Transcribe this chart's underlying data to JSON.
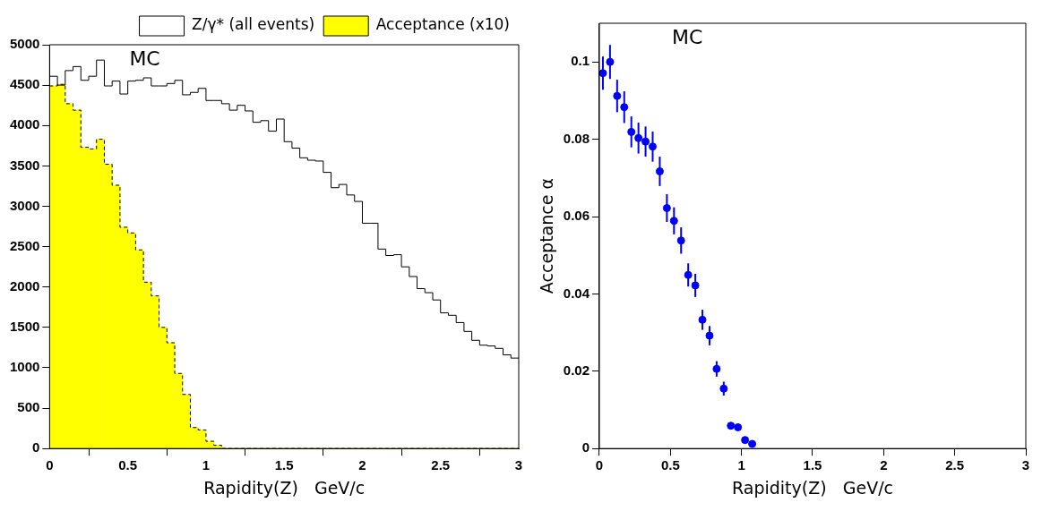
{
  "chart_data": [
    {
      "type": "histogram",
      "xlabel": "Rapidity(Z)   GeV/c",
      "annotations": [
        "MC"
      ],
      "legend": "top right",
      "bins": [
        0,
        0.05,
        0.1,
        0.15,
        0.2,
        0.25,
        0.3,
        0.35,
        0.4,
        0.45,
        0.5,
        0.55,
        0.6,
        0.65,
        0.7,
        0.75,
        0.8,
        0.85,
        0.9,
        0.95,
        1,
        1.05,
        1.1,
        1.15,
        1.2,
        1.25,
        1.3,
        1.35,
        1.4,
        1.45,
        1.5,
        1.55,
        1.6,
        1.65,
        1.7,
        1.75,
        1.8,
        1.85,
        1.9,
        1.95,
        2,
        2.05,
        2.1,
        2.15,
        2.2,
        2.25,
        2.3,
        2.35,
        2.4,
        2.45,
        2.5,
        2.55,
        2.6,
        2.65,
        2.7,
        2.75,
        2.8,
        2.85,
        2.9,
        2.95,
        3
      ],
      "series": [
        {
          "name": "Z/γ* (all events)",
          "color": "#000000",
          "line_style": "solid",
          "values": [
            4610,
            4500,
            4680,
            4730,
            4560,
            4610,
            4810,
            4490,
            4550,
            4390,
            4550,
            4560,
            4590,
            4490,
            4490,
            4520,
            4560,
            4380,
            4410,
            4460,
            4310,
            4310,
            4270,
            4190,
            4250,
            4180,
            4040,
            4060,
            3930,
            4080,
            3800,
            3720,
            3600,
            3570,
            3560,
            3420,
            3230,
            3270,
            3140,
            3060,
            2790,
            2790,
            2470,
            2390,
            2400,
            2250,
            2130,
            1980,
            1930,
            1840,
            1680,
            1650,
            1560,
            1450,
            1340,
            1280,
            1270,
            1240,
            1160,
            1120
          ]
        },
        {
          "name": "Acceptance (x10)",
          "color": "#ffff00",
          "line_style": "dashed",
          "values": [
            4490,
            4510,
            4270,
            4190,
            3730,
            3710,
            3830,
            3520,
            3260,
            2740,
            2670,
            2460,
            2060,
            1890,
            1500,
            1310,
            930,
            670,
            260,
            230,
            90,
            40,
            0,
            0,
            0,
            0,
            0,
            0,
            0,
            0,
            0,
            0,
            0,
            0,
            0,
            0,
            0,
            0,
            0,
            0,
            0,
            0,
            0,
            0,
            0,
            0,
            0,
            0,
            0,
            0,
            0,
            0,
            0,
            0,
            0,
            0,
            0,
            0,
            0,
            0
          ]
        }
      ],
      "xlim": [
        0,
        3
      ],
      "xticks": [
        0,
        0.5,
        1,
        1.5,
        2,
        2.5,
        3
      ],
      "ylim": [
        0,
        5000
      ],
      "yticks": [
        0,
        500,
        1000,
        1500,
        2000,
        2500,
        3000,
        3500,
        4000,
        4500,
        5000
      ]
    },
    {
      "type": "scatter",
      "xlabel": "Rapidity(Z)   GeV/c",
      "ylabel": "Acceptance α",
      "annotations": [
        "MC"
      ],
      "marker": "circle",
      "series": [
        {
          "color": "#0000ff",
          "x": [
            0.025,
            0.075,
            0.125,
            0.175,
            0.225,
            0.275,
            0.325,
            0.375,
            0.425,
            0.475,
            0.525,
            0.575,
            0.625,
            0.675,
            0.725,
            0.775,
            0.825,
            0.875,
            0.925,
            0.975,
            1.025,
            1.075
          ],
          "values": [
            0.0971,
            0.1,
            0.0912,
            0.0883,
            0.0819,
            0.0803,
            0.0794,
            0.0781,
            0.0717,
            0.0622,
            0.0589,
            0.0538,
            0.0449,
            0.0422,
            0.0333,
            0.0292,
            0.0206,
            0.0155,
            0.0059,
            0.0055,
            0.0022,
            0.0012
          ],
          "errors": [
            0.0043,
            0.0044,
            0.0042,
            0.0041,
            0.004,
            0.004,
            0.0039,
            0.0039,
            0.0038,
            0.0036,
            0.0035,
            0.0034,
            0.003,
            0.003,
            0.0026,
            0.0025,
            0.002,
            0.0018,
            0.0008,
            0.0008,
            0.0005,
            0.0004
          ]
        }
      ],
      "xlim": [
        0,
        3
      ],
      "xticks": [
        0,
        0.5,
        1,
        1.5,
        2,
        2.5,
        3
      ],
      "ylim": [
        0,
        0.11
      ],
      "yticks": [
        0,
        0.02,
        0.04,
        0.06,
        0.08,
        0.1
      ]
    }
  ]
}
